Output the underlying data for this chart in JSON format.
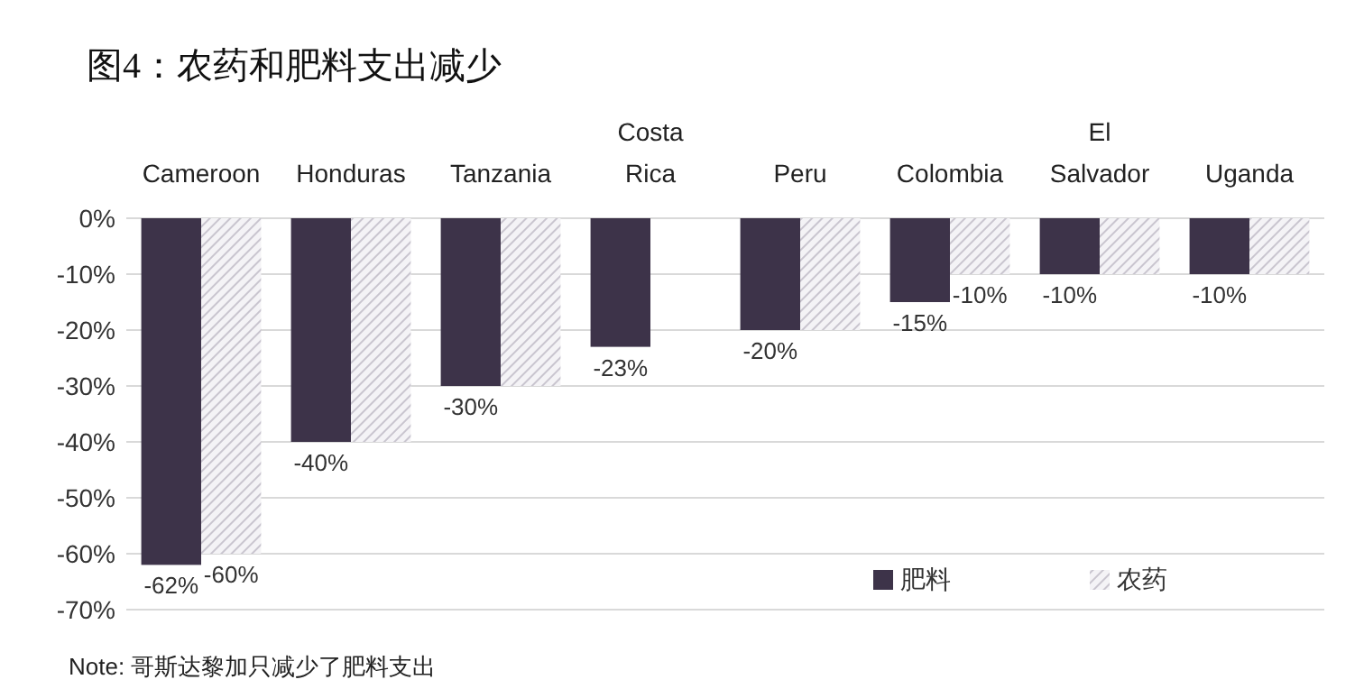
{
  "chart_data": {
    "type": "bar",
    "title": "图4：农药和肥料支出减少",
    "categories": [
      "Cameroon",
      "Honduras",
      "Tanzania",
      "Costa Rica",
      "Peru",
      "Colombia",
      "El Salvador",
      "Uganda"
    ],
    "series": [
      {
        "name": "肥料",
        "color": "#3d3349",
        "values": [
          -62,
          -40,
          -30,
          -23,
          -20,
          -15,
          -10,
          -10
        ],
        "value_labels": [
          "-62%",
          "-40%",
          "-30%",
          "-23%",
          "-20%",
          "-15%",
          "-10%",
          "-10%"
        ]
      },
      {
        "name": "农药",
        "color": "#c9c5cf",
        "values": [
          -60,
          -40,
          -30,
          0,
          -20,
          -10,
          -10,
          -10
        ],
        "value_labels": [
          "-60%",
          null,
          null,
          null,
          null,
          "-10%",
          null,
          null
        ]
      }
    ],
    "ylim": [
      -70,
      0
    ],
    "yticks": [
      {
        "value": 0,
        "label": "0%"
      },
      {
        "value": -10,
        "label": "-10%"
      },
      {
        "value": -20,
        "label": "-20%"
      },
      {
        "value": -30,
        "label": "-30%"
      },
      {
        "value": -40,
        "label": "-40%"
      },
      {
        "value": -50,
        "label": "-50%"
      },
      {
        "value": -60,
        "label": "-60%"
      },
      {
        "value": -70,
        "label": "-70%"
      }
    ],
    "grid": "y",
    "legend": "bottom right",
    "annotations": [
      "Note: 哥斯达黎加只减少了肥料支出"
    ]
  }
}
